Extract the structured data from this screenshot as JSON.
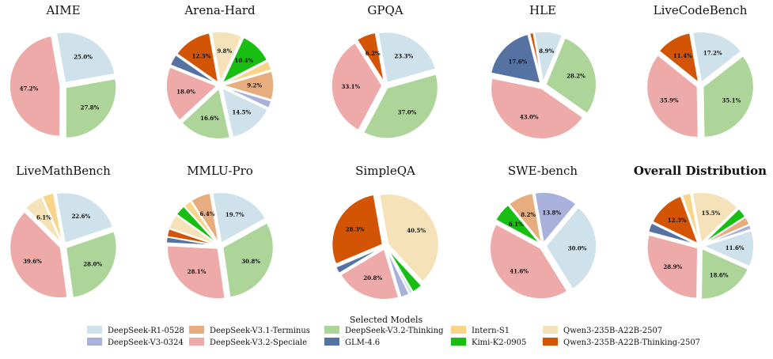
{
  "chart_data": {
    "type": "pie",
    "models": [
      {
        "name": "DeepSeek-R1-0528",
        "color": "#cfe2ec"
      },
      {
        "name": "DeepSeek-V3-0324",
        "color": "#a7b1d9"
      },
      {
        "name": "DeepSeek-V3.1-Terminus",
        "color": "#e8ad7f"
      },
      {
        "name": "DeepSeek-V3.2-Speciale",
        "color": "#eea9a9"
      },
      {
        "name": "DeepSeek-V3.2-Thinking",
        "color": "#add59a"
      },
      {
        "name": "GLM-4.6",
        "color": "#5572a3"
      },
      {
        "name": "Intern-S1",
        "color": "#f8d58b"
      },
      {
        "name": "Kimi-K2-0905",
        "color": "#18bf12"
      },
      {
        "name": "Qwen3-235B-A22B-2507",
        "color": "#f6e2b8"
      },
      {
        "name": "Qwen3-235B-A22B-Thinking-2507",
        "color": "#d35404"
      }
    ],
    "legend": {
      "title": "Selected Models",
      "placement": "bottom-center"
    },
    "pies": [
      {
        "title": "AIME",
        "bold": false,
        "slices": [
          {
            "model": 0,
            "value": 25.0,
            "label": "25.0%"
          },
          {
            "model": 4,
            "value": 27.8,
            "label": "27.8%"
          },
          {
            "model": 3,
            "value": 47.2,
            "label": "47.2%"
          }
        ]
      },
      {
        "title": "Arena-Hard",
        "bold": false,
        "slices": [
          {
            "model": 8,
            "value": 9.8,
            "label": "9.8%"
          },
          {
            "model": 7,
            "value": 10.4,
            "label": "10.4%"
          },
          {
            "model": 6,
            "value": 3.0,
            "label": ""
          },
          {
            "model": 2,
            "value": 9.2,
            "label": "9.2%"
          },
          {
            "model": 1,
            "value": 2.4,
            "label": ""
          },
          {
            "model": 0,
            "value": 14.5,
            "label": "14.5%"
          },
          {
            "model": 4,
            "value": 16.6,
            "label": "16.6%"
          },
          {
            "model": 3,
            "value": 18.0,
            "label": "18.0%"
          },
          {
            "model": 5,
            "value": 3.6,
            "label": ""
          },
          {
            "model": 9,
            "value": 12.5,
            "label": "12.5%"
          }
        ]
      },
      {
        "title": "GPQA",
        "bold": false,
        "slices": [
          {
            "model": 0,
            "value": 23.3,
            "label": "23.3%"
          },
          {
            "model": 4,
            "value": 37.0,
            "label": "37.0%"
          },
          {
            "model": 3,
            "value": 33.1,
            "label": "33.1%"
          },
          {
            "model": 9,
            "value": 6.2,
            "label": "6.2%"
          }
        ]
      },
      {
        "title": "HLE",
        "bold": false,
        "slices": [
          {
            "model": 0,
            "value": 8.9,
            "label": "8.9%"
          },
          {
            "model": 4,
            "value": 28.2,
            "label": "28.2%"
          },
          {
            "model": 3,
            "value": 43.0,
            "label": "43.0%"
          },
          {
            "model": 5,
            "value": 17.6,
            "label": "17.6%"
          },
          {
            "model": 9,
            "value": 1.2,
            "label": ""
          }
        ]
      },
      {
        "title": "LiveCodeBench",
        "bold": false,
        "slices": [
          {
            "model": 0,
            "value": 17.2,
            "label": "17.2%"
          },
          {
            "model": 4,
            "value": 35.1,
            "label": "35.1%"
          },
          {
            "model": 3,
            "value": 35.9,
            "label": "35.9%"
          },
          {
            "model": 9,
            "value": 11.4,
            "label": "11.4%"
          }
        ]
      },
      {
        "title": "LiveMathBench",
        "bold": false,
        "slices": [
          {
            "model": 0,
            "value": 22.6,
            "label": "22.6%"
          },
          {
            "model": 4,
            "value": 28.0,
            "label": "28.0%"
          },
          {
            "model": 3,
            "value": 39.6,
            "label": "39.6%"
          },
          {
            "model": 8,
            "value": 6.1,
            "label": "6.1%"
          },
          {
            "model": 6,
            "value": 3.7,
            "label": ""
          }
        ]
      },
      {
        "title": "MMLU-Pro",
        "bold": false,
        "slices": [
          {
            "model": 0,
            "value": 19.7,
            "label": "19.7%"
          },
          {
            "model": 4,
            "value": 30.8,
            "label": "30.8%"
          },
          {
            "model": 3,
            "value": 28.1,
            "label": "28.1%"
          },
          {
            "model": 5,
            "value": 1.9,
            "label": ""
          },
          {
            "model": 9,
            "value": 2.5,
            "label": ""
          },
          {
            "model": 8,
            "value": 4.7,
            "label": ""
          },
          {
            "model": 7,
            "value": 3.4,
            "label": ""
          },
          {
            "model": 6,
            "value": 2.5,
            "label": ""
          },
          {
            "model": 2,
            "value": 6.4,
            "label": "6.4%"
          }
        ]
      },
      {
        "title": "SimpleQA",
        "bold": false,
        "slices": [
          {
            "model": 8,
            "value": 40.5,
            "label": "40.5%"
          },
          {
            "model": 7,
            "value": 3.3,
            "label": ""
          },
          {
            "model": 0,
            "value": 1.1,
            "label": ""
          },
          {
            "model": 1,
            "value": 2.8,
            "label": ""
          },
          {
            "model": 3,
            "value": 20.8,
            "label": "20.8%"
          },
          {
            "model": 5,
            "value": 2.2,
            "label": ""
          },
          {
            "model": 9,
            "value": 28.3,
            "label": "28.3%"
          }
        ]
      },
      {
        "title": "SWE-bench",
        "bold": false,
        "slices": [
          {
            "model": 1,
            "value": 13.8,
            "label": "13.8%"
          },
          {
            "model": 0,
            "value": 30.0,
            "label": "30.0%"
          },
          {
            "model": 3,
            "value": 41.6,
            "label": "41.6%"
          },
          {
            "model": 7,
            "value": 6.1,
            "label": "6.1%"
          },
          {
            "model": 2,
            "value": 8.2,
            "label": "8.2%"
          }
        ]
      },
      {
        "title": "Overall Distribution",
        "bold": true,
        "slices": [
          {
            "model": 8,
            "value": 15.5,
            "label": "15.5%"
          },
          {
            "model": 7,
            "value": 3.2,
            "label": ""
          },
          {
            "model": 2,
            "value": 2.6,
            "label": ""
          },
          {
            "model": 1,
            "value": 1.5,
            "label": ""
          },
          {
            "model": 0,
            "value": 11.6,
            "label": "11.6%"
          },
          {
            "model": 4,
            "value": 18.6,
            "label": "18.6%"
          },
          {
            "model": 3,
            "value": 28.9,
            "label": "28.9%"
          },
          {
            "model": 5,
            "value": 3.0,
            "label": ""
          },
          {
            "model": 9,
            "value": 12.3,
            "label": "12.3%"
          },
          {
            "model": 6,
            "value": 2.8,
            "label": ""
          }
        ]
      }
    ]
  }
}
